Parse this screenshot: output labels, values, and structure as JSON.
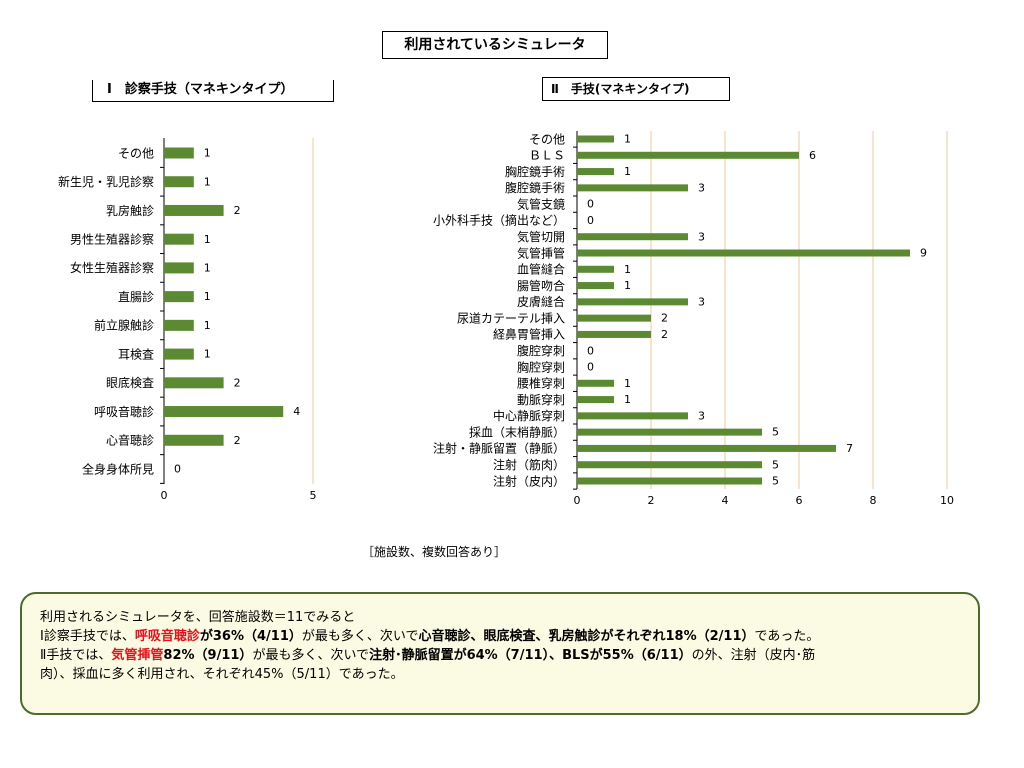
{
  "page": {
    "title": "利用されているシミュレータ",
    "note": "［施設数、複数回答あり］"
  },
  "chart_data": [
    {
      "type": "bar",
      "orientation": "horizontal",
      "title": "Ⅰ　診察手技（マネキンタイプ）",
      "categories": [
        "その他",
        "新生児・乳児診察",
        "乳房触診",
        "男性生殖器診察",
        "女性生殖器診察",
        "直腸診",
        "前立腺触診",
        "耳検査",
        "眼底検査",
        "呼吸音聴診",
        "心音聴診",
        "全身身体所見"
      ],
      "values": [
        1,
        1,
        2,
        1,
        1,
        1,
        1,
        1,
        2,
        4,
        2,
        0
      ],
      "xlim": [
        0,
        5
      ],
      "xticks": [
        0,
        5
      ],
      "bar_color": "#5b8a32",
      "grid": true
    },
    {
      "type": "bar",
      "orientation": "horizontal",
      "title": "Ⅱ　手技(マネキンタイプ)",
      "categories": [
        "その他",
        "ＢＬＳ",
        "胸腔鏡手術",
        "腹腔鏡手術",
        "気管支鏡",
        "小外科手技（摘出など）",
        "気管切開",
        "気管挿管",
        "血管縫合",
        "腸管吻合",
        "皮膚縫合",
        "尿道カテーテル挿入",
        "経鼻胃管挿入",
        "腹腔穿刺",
        "胸腔穿刺",
        "腰椎穿刺",
        "動脈穿刺",
        "中心静脈穿刺",
        "採血（末梢静脈）",
        "注射・静脈留置（静脈）",
        "注射（筋肉）",
        "注射（皮内）"
      ],
      "values": [
        1,
        6,
        1,
        3,
        0,
        0,
        3,
        9,
        1,
        1,
        3,
        2,
        2,
        0,
        0,
        1,
        1,
        3,
        5,
        7,
        5,
        5
      ],
      "xlim": [
        0,
        10
      ],
      "xticks": [
        0,
        2,
        4,
        6,
        8,
        10
      ],
      "bar_color": "#5b8a32",
      "grid": true
    }
  ],
  "summary": {
    "line1": "利用されるシミュレータを、回答施設数＝11でみると",
    "line2": [
      {
        "t": "Ⅰ診察手技では、",
        "s": ""
      },
      {
        "t": "呼吸音聴診",
        "s": "r"
      },
      {
        "t": "が36%（4/11）",
        "s": "b"
      },
      {
        "t": "が最も多く、次いで",
        "s": ""
      },
      {
        "t": "心音聴診、眼底検査、乳房触診がそれぞれ18%（2/11）",
        "s": "b"
      },
      {
        "t": "であった。",
        "s": ""
      }
    ],
    "line3": [
      {
        "t": "Ⅱ手技では、",
        "s": ""
      },
      {
        "t": "気管挿管",
        "s": "r"
      },
      {
        "t": "82%（9/11）",
        "s": "b"
      },
      {
        "t": "が最も多く、次いで",
        "s": ""
      },
      {
        "t": "注射･静脈留置が64%（7/11）、BLSが55%（6/11）",
        "s": "b"
      },
      {
        "t": "の外、注射（皮内･筋",
        "s": ""
      }
    ],
    "line4": "肉）、採血に多く利用され、それぞれ45%（5/11）であった。"
  },
  "colors": {
    "grid": "#f2c79a",
    "axis": "#000000",
    "summary_border": "#4e6b2a",
    "summary_bg": "#fbfbe3",
    "highlight": "#e8111b"
  }
}
